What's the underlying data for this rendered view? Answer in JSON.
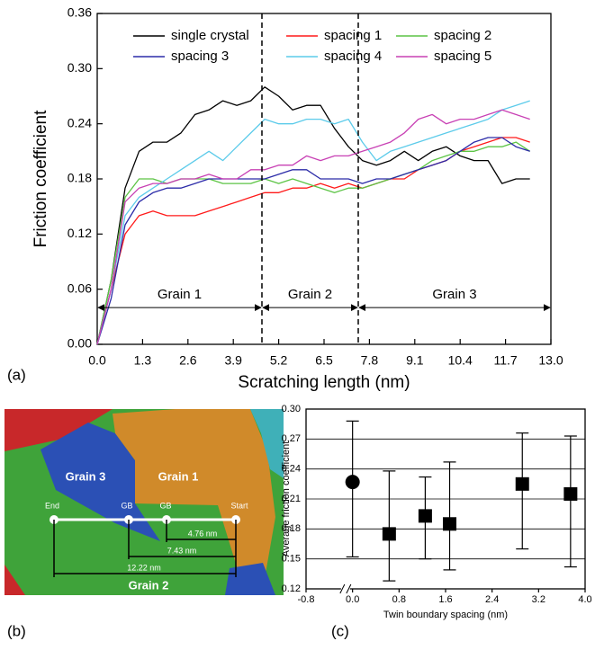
{
  "chart_data": [
    {
      "type": "line",
      "panel_label": "(a)",
      "x_label": "Scratching length (nm)",
      "y_label": "Friction coefficient",
      "x": [
        0,
        0.4,
        0.8,
        1.2,
        1.6,
        2.0,
        2.4,
        2.8,
        3.2,
        3.6,
        4.0,
        4.4,
        4.8,
        5.2,
        5.6,
        6.0,
        6.4,
        6.8,
        7.2,
        7.6,
        8.0,
        8.4,
        8.8,
        9.2,
        9.6,
        10.0,
        10.4,
        10.8,
        11.2,
        11.6,
        12.0,
        12.4
      ],
      "series": [
        {
          "name": "single crystal",
          "color": "#000000",
          "values": [
            0,
            0.07,
            0.17,
            0.21,
            0.22,
            0.22,
            0.23,
            0.25,
            0.255,
            0.265,
            0.26,
            0.265,
            0.28,
            0.27,
            0.255,
            0.26,
            0.26,
            0.235,
            0.215,
            0.2,
            0.195,
            0.2,
            0.21,
            0.2,
            0.21,
            0.215,
            0.205,
            0.2,
            0.2,
            0.175,
            0.18,
            0.18
          ]
        },
        {
          "name": "spacing 1",
          "color": "#ff1a1a",
          "values": [
            0,
            0.06,
            0.12,
            0.14,
            0.145,
            0.14,
            0.14,
            0.14,
            0.145,
            0.15,
            0.155,
            0.16,
            0.165,
            0.165,
            0.17,
            0.17,
            0.175,
            0.17,
            0.175,
            0.17,
            0.175,
            0.18,
            0.18,
            0.19,
            0.195,
            0.2,
            0.21,
            0.215,
            0.22,
            0.225,
            0.225,
            0.22
          ]
        },
        {
          "name": "spacing 2",
          "color": "#5cc445",
          "values": [
            0,
            0.07,
            0.16,
            0.18,
            0.18,
            0.175,
            0.18,
            0.18,
            0.18,
            0.175,
            0.175,
            0.175,
            0.18,
            0.175,
            0.18,
            0.175,
            0.17,
            0.165,
            0.17,
            0.17,
            0.175,
            0.18,
            0.185,
            0.19,
            0.2,
            0.205,
            0.21,
            0.21,
            0.215,
            0.215,
            0.22,
            0.21
          ]
        },
        {
          "name": "spacing 3",
          "color": "#2b2ba8",
          "values": [
            0,
            0.05,
            0.13,
            0.155,
            0.165,
            0.17,
            0.17,
            0.175,
            0.18,
            0.18,
            0.18,
            0.18,
            0.18,
            0.185,
            0.19,
            0.19,
            0.18,
            0.18,
            0.18,
            0.175,
            0.18,
            0.18,
            0.185,
            0.19,
            0.195,
            0.2,
            0.21,
            0.22,
            0.225,
            0.225,
            0.215,
            0.21
          ]
        },
        {
          "name": "spacing 4",
          "color": "#5ccbea",
          "values": [
            0,
            0.06,
            0.14,
            0.16,
            0.17,
            0.18,
            0.19,
            0.2,
            0.21,
            0.2,
            0.215,
            0.23,
            0.245,
            0.24,
            0.24,
            0.245,
            0.245,
            0.24,
            0.245,
            0.22,
            0.2,
            0.21,
            0.215,
            0.22,
            0.225,
            0.23,
            0.235,
            0.24,
            0.245,
            0.255,
            0.26,
            0.265
          ]
        },
        {
          "name": "spacing 5",
          "color": "#c840b4",
          "values": [
            0,
            0.06,
            0.155,
            0.17,
            0.175,
            0.175,
            0.18,
            0.18,
            0.185,
            0.18,
            0.18,
            0.19,
            0.19,
            0.195,
            0.195,
            0.205,
            0.2,
            0.205,
            0.205,
            0.21,
            0.215,
            0.22,
            0.23,
            0.245,
            0.25,
            0.24,
            0.245,
            0.245,
            0.25,
            0.255,
            0.25,
            0.245
          ]
        }
      ],
      "xlim": [
        0,
        13
      ],
      "ylim": [
        0,
        0.36
      ],
      "xticks": [
        {
          "value": 0,
          "label": "0.0"
        },
        1.3,
        2.6,
        3.9,
        5.2,
        6.5,
        7.8,
        9.1,
        10.4,
        11.7,
        {
          "value": 13,
          "label": "13.0"
        }
      ],
      "yticks": [
        {
          "value": 0,
          "label": "0.00"
        },
        0.06,
        0.12,
        0.18,
        0.24,
        {
          "value": 0.3,
          "label": "0.30"
        },
        0.36
      ],
      "boundaries": [
        4.72,
        7.48
      ],
      "annotation_y": 0.04,
      "regions": [
        {
          "label": "Grain 1",
          "from": 0,
          "to": 4.72
        },
        {
          "label": "Grain 2",
          "from": 4.72,
          "to": 7.48
        },
        {
          "label": "Grain 3",
          "from": 7.48,
          "to": 13
        }
      ]
    },
    {
      "type": "scatter",
      "panel_label": "(c)",
      "x_label": "Twin boundary spacing (nm)",
      "y_label": "Average friction coefficient",
      "x": [
        0,
        0.63,
        1.25,
        1.67,
        2.92,
        3.75
      ],
      "values": [
        0.227,
        0.175,
        0.193,
        0.185,
        0.225,
        0.215
      ],
      "lower": [
        0.152,
        0.128,
        0.15,
        0.139,
        0.16,
        0.142
      ],
      "upper": [
        0.288,
        0.238,
        0.232,
        0.247,
        0.276,
        0.273
      ],
      "markers": [
        "circle",
        "square",
        "square",
        "square",
        "square",
        "square"
      ],
      "color": "#000000",
      "xlim": [
        -0.8,
        4.0
      ],
      "ylim": [
        0.12,
        0.3
      ],
      "xticks": [
        -0.8,
        {
          "value": 0,
          "label": "0.0"
        },
        0.8,
        1.6,
        2.4,
        3.2,
        {
          "value": 4,
          "label": "4.0"
        }
      ],
      "yticks": [
        0.12,
        0.15,
        0.18,
        0.21,
        0.24,
        0.27,
        {
          "value": 0.3,
          "label": "0.30"
        }
      ],
      "grid": true
    }
  ],
  "grain_map": {
    "panel_label": "(b)",
    "grains": [
      "Grain 3",
      "Grain 1",
      "Grain 2"
    ],
    "points": [
      "End",
      "GB",
      "GB",
      "Start"
    ],
    "distances": [
      "4.76 nm",
      "7.43 nm",
      "12.22 nm"
    ]
  }
}
